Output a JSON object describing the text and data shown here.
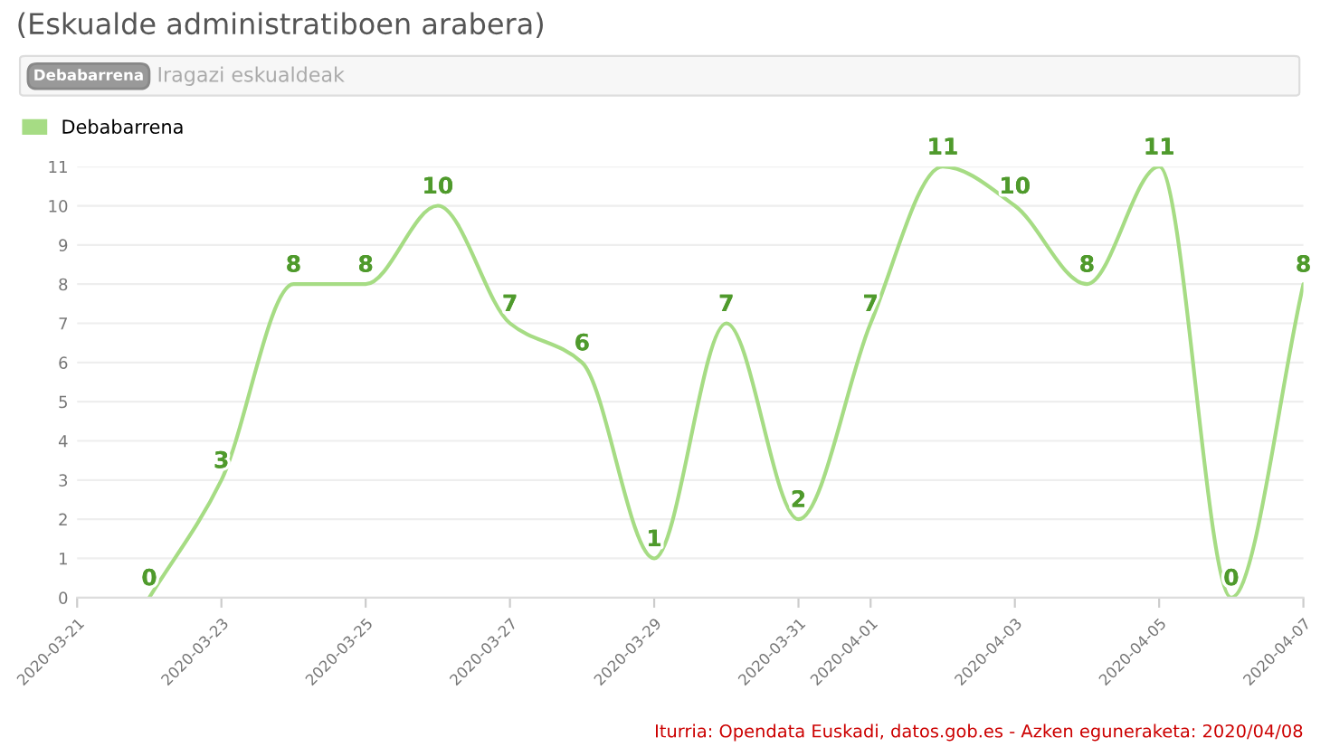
{
  "chart_data": {
    "type": "line",
    "subtitle": "(Eskualde administratiboen arabera)",
    "annotations": [
      "Debabarrena",
      "Iragazi eskualdeak",
      "Iturria: Opendata Euskadi, datos.gob.es - Azken eguneraketa: 2020/04/08"
    ],
    "x": [
      "2020-03-22",
      "2020-03-23",
      "2020-03-24",
      "2020-03-25",
      "2020-03-26",
      "2020-03-27",
      "2020-03-28",
      "2020-03-29",
      "2020-03-30",
      "2020-03-31",
      "2020-04-01",
      "2020-04-02",
      "2020-04-03",
      "2020-04-04",
      "2020-04-05",
      "2020-04-06",
      "2020-04-07"
    ],
    "series": [
      {
        "name": "Debabarrena",
        "color": "#a6dc84",
        "values": [
          0,
          3,
          8,
          8,
          10,
          7,
          6,
          1,
          7,
          2,
          7,
          11,
          10,
          8,
          11,
          0,
          8
        ]
      }
    ],
    "xlim": [
      "2020-03-21",
      "2020-04-07"
    ],
    "xticks": [
      "2020-03-21",
      "2020-03-23",
      "2020-03-25",
      "2020-03-27",
      "2020-03-29",
      "2020-03-31",
      "2020-04-01",
      "2020-04-03",
      "2020-04-05",
      "2020-04-07"
    ],
    "ylim": [
      0,
      11
    ],
    "yticks": [
      0,
      1,
      2,
      3,
      4,
      5,
      6,
      7,
      8,
      9,
      10,
      11
    ],
    "grid": "y",
    "legend": "top left",
    "marker": "none",
    "line_style": "solid",
    "data_labels": true
  }
}
